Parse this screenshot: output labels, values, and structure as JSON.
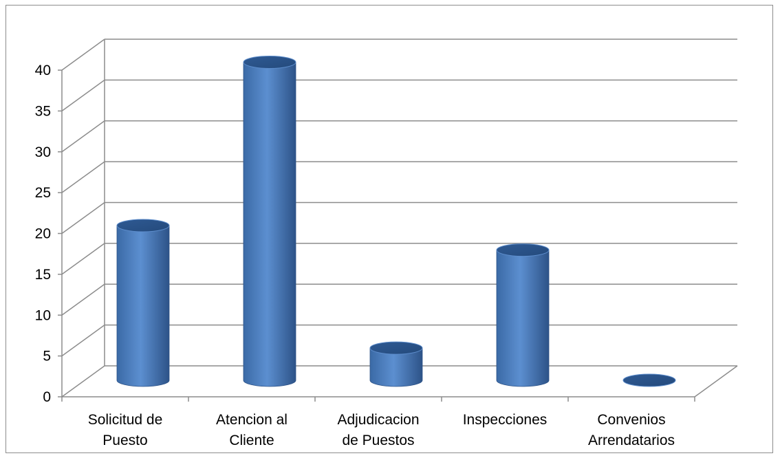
{
  "chart_data": {
    "type": "bar",
    "style": "3d-cylinder",
    "categories": [
      [
        "Solicitud de",
        "Puesto"
      ],
      [
        "Atencion al",
        "Cliente"
      ],
      [
        "Adjudicacion",
        "de Puestos"
      ],
      [
        "Inspecciones"
      ],
      [
        "Convenios",
        "Arrendatarios"
      ]
    ],
    "values": [
      20,
      40,
      5,
      17,
      0
    ],
    "yticks": [
      0,
      5,
      10,
      15,
      20,
      25,
      30,
      35,
      40
    ],
    "ylim": [
      0,
      40
    ],
    "grid": true,
    "legend": "none",
    "colors": {
      "bar": "#4a7ebb",
      "bar_light": "#7fa9dc",
      "bar_dark": "#2a4f80",
      "grid": "#8c8c8c"
    }
  }
}
